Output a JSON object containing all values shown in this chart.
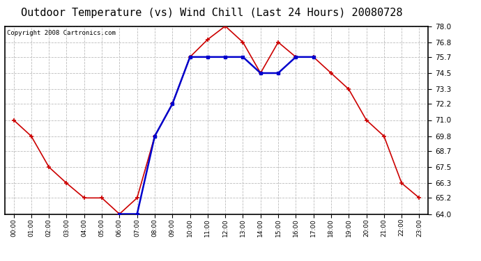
{
  "title": "Outdoor Temperature (vs) Wind Chill (Last 24 Hours) 20080728",
  "copyright": "Copyright 2008 Cartronics.com",
  "x_labels": [
    "00:00",
    "01:00",
    "02:00",
    "03:00",
    "04:00",
    "05:00",
    "06:00",
    "07:00",
    "08:00",
    "09:00",
    "10:00",
    "11:00",
    "12:00",
    "13:00",
    "14:00",
    "15:00",
    "16:00",
    "17:00",
    "18:00",
    "19:00",
    "20:00",
    "21:00",
    "22:00",
    "23:00"
  ],
  "temp_values": [
    71.0,
    69.8,
    67.5,
    66.3,
    65.2,
    65.2,
    64.0,
    65.2,
    69.8,
    72.2,
    75.7,
    77.0,
    78.0,
    76.8,
    74.5,
    76.8,
    75.7,
    75.7,
    74.5,
    73.3,
    71.0,
    69.8,
    66.3,
    65.2
  ],
  "wind_chill_values": [
    null,
    null,
    null,
    null,
    null,
    null,
    64.0,
    64.0,
    69.8,
    72.2,
    75.7,
    75.7,
    75.7,
    75.7,
    74.5,
    74.5,
    75.7,
    75.7,
    null,
    null,
    null,
    null,
    null,
    null
  ],
  "temp_color": "#cc0000",
  "wind_chill_color": "#0000cc",
  "ylim": [
    64.0,
    78.0
  ],
  "yticks": [
    64.0,
    65.2,
    66.3,
    67.5,
    68.7,
    69.8,
    71.0,
    72.2,
    73.3,
    74.5,
    75.7,
    76.8,
    78.0
  ],
  "background_color": "#ffffff",
  "plot_bg_color": "#ffffff",
  "grid_color": "#bbbbbb",
  "title_fontsize": 11,
  "copyright_fontsize": 6.5
}
